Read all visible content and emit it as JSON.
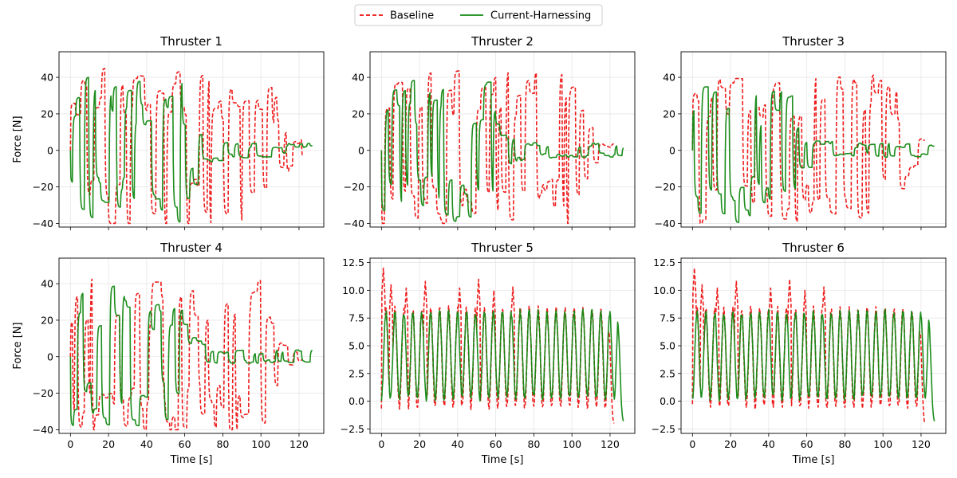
{
  "legend": {
    "entries": [
      {
        "label": "Baseline",
        "color": "#ee1111",
        "style": "dashed"
      },
      {
        "label": "Current-Harnessing",
        "color": "#118811",
        "style": "solid"
      }
    ]
  },
  "chart_data": [
    {
      "type": "line",
      "title": "Thruster 1",
      "xlabel": "",
      "ylabel": "Force [N]",
      "xlim": [
        -6,
        133
      ],
      "ylim": [
        -42,
        54
      ],
      "xticks": [
        0,
        20,
        40,
        60,
        80,
        100,
        120
      ],
      "xticklabels": [],
      "yticks": [
        -40,
        -20,
        0,
        20,
        40
      ],
      "yticklabels": [
        "−40",
        "−20",
        "0",
        "20",
        "40"
      ],
      "grid": true,
      "series": [
        {
          "name": "Baseline",
          "signal": {
            "amp": 45,
            "offset": 0,
            "decay_at": 105,
            "tail_amp": 3,
            "end": 122,
            "seed": 1
          }
        },
        {
          "name": "Current-Harnessing",
          "signal": {
            "amp": 40,
            "offset": 0,
            "decay_at": 60,
            "tail_amp": 4,
            "end": 127,
            "seed": 2
          }
        }
      ]
    },
    {
      "type": "line",
      "title": "Thruster 2",
      "xlabel": "",
      "ylabel": "",
      "xlim": [
        -6,
        133
      ],
      "ylim": [
        -42,
        54
      ],
      "xticks": [
        0,
        20,
        40,
        60,
        80,
        100,
        120
      ],
      "xticklabels": [],
      "yticks": [
        -40,
        -20,
        0,
        20,
        40
      ],
      "yticklabels": [
        "−40",
        "−20",
        "0",
        "20",
        "40"
      ],
      "grid": true,
      "series": [
        {
          "name": "Baseline",
          "signal": {
            "amp": 45,
            "offset": 0,
            "decay_at": 100,
            "tail_amp": 3,
            "end": 122,
            "seed": 3
          }
        },
        {
          "name": "Current-Harnessing",
          "signal": {
            "amp": 40,
            "offset": 0,
            "decay_at": 55,
            "tail_amp": 4,
            "end": 127,
            "seed": 4
          }
        }
      ]
    },
    {
      "type": "line",
      "title": "Thruster 3",
      "xlabel": "",
      "ylabel": "",
      "xlim": [
        -6,
        133
      ],
      "ylim": [
        -42,
        54
      ],
      "xticks": [
        0,
        20,
        40,
        60,
        80,
        100,
        120
      ],
      "xticklabels": [],
      "yticks": [
        -40,
        -20,
        0,
        20,
        40
      ],
      "yticklabels": [
        "−40",
        "−20",
        "0",
        "20",
        "40"
      ],
      "grid": true,
      "series": [
        {
          "name": "Baseline",
          "signal": {
            "amp": 45,
            "offset": 0,
            "decay_at": 105,
            "tail_amp": 3,
            "end": 122,
            "seed": 5
          }
        },
        {
          "name": "Current-Harnessing",
          "signal": {
            "amp": 40,
            "offset": 0,
            "decay_at": 50,
            "tail_amp": 4,
            "end": 127,
            "seed": 6
          }
        }
      ]
    },
    {
      "type": "line",
      "title": "Thruster 4",
      "xlabel": "Time [s]",
      "ylabel": "Force [N]",
      "xlim": [
        -6,
        133
      ],
      "ylim": [
        -42,
        54
      ],
      "xticks": [
        0,
        20,
        40,
        60,
        80,
        100,
        120
      ],
      "xticklabels": [
        "0",
        "20",
        "40",
        "60",
        "80",
        "100",
        "120"
      ],
      "yticks": [
        -40,
        -20,
        0,
        20,
        40
      ],
      "yticklabels": [
        "−40",
        "−20",
        "0",
        "20",
        "40"
      ],
      "grid": true,
      "series": [
        {
          "name": "Baseline",
          "signal": {
            "amp": 45,
            "offset": 0,
            "decay_at": 100,
            "tail_amp": 3,
            "end": 122,
            "seed": 7
          }
        },
        {
          "name": "Current-Harnessing",
          "signal": {
            "amp": 40,
            "offset": 0,
            "decay_at": 55,
            "tail_amp": 4,
            "end": 127,
            "seed": 8
          }
        }
      ]
    },
    {
      "type": "line",
      "title": "Thruster 5",
      "xlabel": "Time [s]",
      "ylabel": "",
      "xlim": [
        -6,
        133
      ],
      "ylim": [
        -2.9,
        12.9
      ],
      "xticks": [
        0,
        20,
        40,
        60,
        80,
        100,
        120
      ],
      "xticklabels": [
        "0",
        "20",
        "40",
        "60",
        "80",
        "100",
        "120"
      ],
      "yticks": [
        -2.5,
        0.0,
        2.5,
        5.0,
        7.5,
        10.0,
        12.5
      ],
      "yticklabels": [
        "−2.5",
        "0.0",
        "2.5",
        "5.0",
        "7.5",
        "10.0",
        "12.5"
      ],
      "grid": true,
      "series": [
        {
          "name": "Baseline",
          "signal": {
            "kind": "osc",
            "period": 4.7,
            "low": -0.5,
            "high": 8.3,
            "spikes": [
              [
                1,
                12.0
              ],
              [
                5,
                10.5
              ],
              [
                13,
                10.2
              ],
              [
                23,
                10.8
              ],
              [
                41,
                10.2
              ],
              [
                51,
                11.0
              ],
              [
                59,
                10.0
              ],
              [
                69,
                10.3
              ]
            ],
            "end": 122,
            "end_value": -2.0,
            "seed": 9
          }
        },
        {
          "name": "Current-Harnessing",
          "signal": {
            "kind": "osc",
            "period": 4.7,
            "low": 0.3,
            "high": 8.0,
            "end": 127,
            "end_value": -1.8,
            "seed": 10
          }
        }
      ]
    },
    {
      "type": "line",
      "title": "Thruster 6",
      "xlabel": "Time [s]",
      "ylabel": "",
      "xlim": [
        -6,
        133
      ],
      "ylim": [
        -2.9,
        12.9
      ],
      "xticks": [
        0,
        20,
        40,
        60,
        80,
        100,
        120
      ],
      "xticklabels": [
        "0",
        "20",
        "40",
        "60",
        "80",
        "100",
        "120"
      ],
      "yticks": [
        -2.5,
        0.0,
        2.5,
        5.0,
        7.5,
        10.0,
        12.5
      ],
      "yticklabels": [
        "−2.5",
        "0.0",
        "2.5",
        "5.0",
        "7.5",
        "10.0",
        "12.5"
      ],
      "grid": true,
      "series": [
        {
          "name": "Baseline",
          "signal": {
            "kind": "osc",
            "period": 4.7,
            "low": -0.5,
            "high": 8.3,
            "spikes": [
              [
                1,
                12.0
              ],
              [
                5,
                10.5
              ],
              [
                13,
                10.2
              ],
              [
                23,
                10.8
              ],
              [
                41,
                10.2
              ],
              [
                51,
                11.0
              ],
              [
                59,
                10.0
              ],
              [
                69,
                10.3
              ]
            ],
            "end": 122,
            "end_value": -2.0,
            "seed": 11
          }
        },
        {
          "name": "Current-Harnessing",
          "signal": {
            "kind": "osc",
            "period": 4.7,
            "low": 0.3,
            "high": 8.0,
            "end": 127,
            "end_value": -1.8,
            "seed": 12
          }
        }
      ]
    }
  ]
}
